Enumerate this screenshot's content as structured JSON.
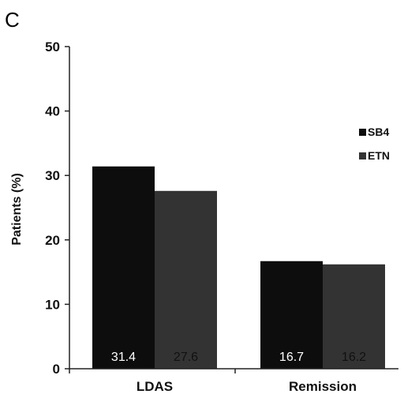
{
  "panel_label": "C",
  "colors": {
    "SB4": "#0d0d0d",
    "ETN": "#333333",
    "axis": "#222222",
    "value_label_light": "#ffffff",
    "value_label_dark": "#111111"
  },
  "chart_data": {
    "type": "bar",
    "title": "",
    "xlabel": "",
    "ylabel": "Patients (%)",
    "ylim": [
      0,
      50
    ],
    "yticks": [
      0,
      10,
      20,
      30,
      40,
      50
    ],
    "grid": false,
    "legend_position": "right",
    "categories": [
      "LDAS",
      "Remission"
    ],
    "series": [
      {
        "name": "SB4",
        "values": [
          31.4,
          16.7
        ],
        "labels": [
          "31.4",
          "16.7"
        ]
      },
      {
        "name": "ETN",
        "values": [
          27.6,
          16.2
        ],
        "labels": [
          "27.6",
          "16.2"
        ]
      }
    ]
  }
}
